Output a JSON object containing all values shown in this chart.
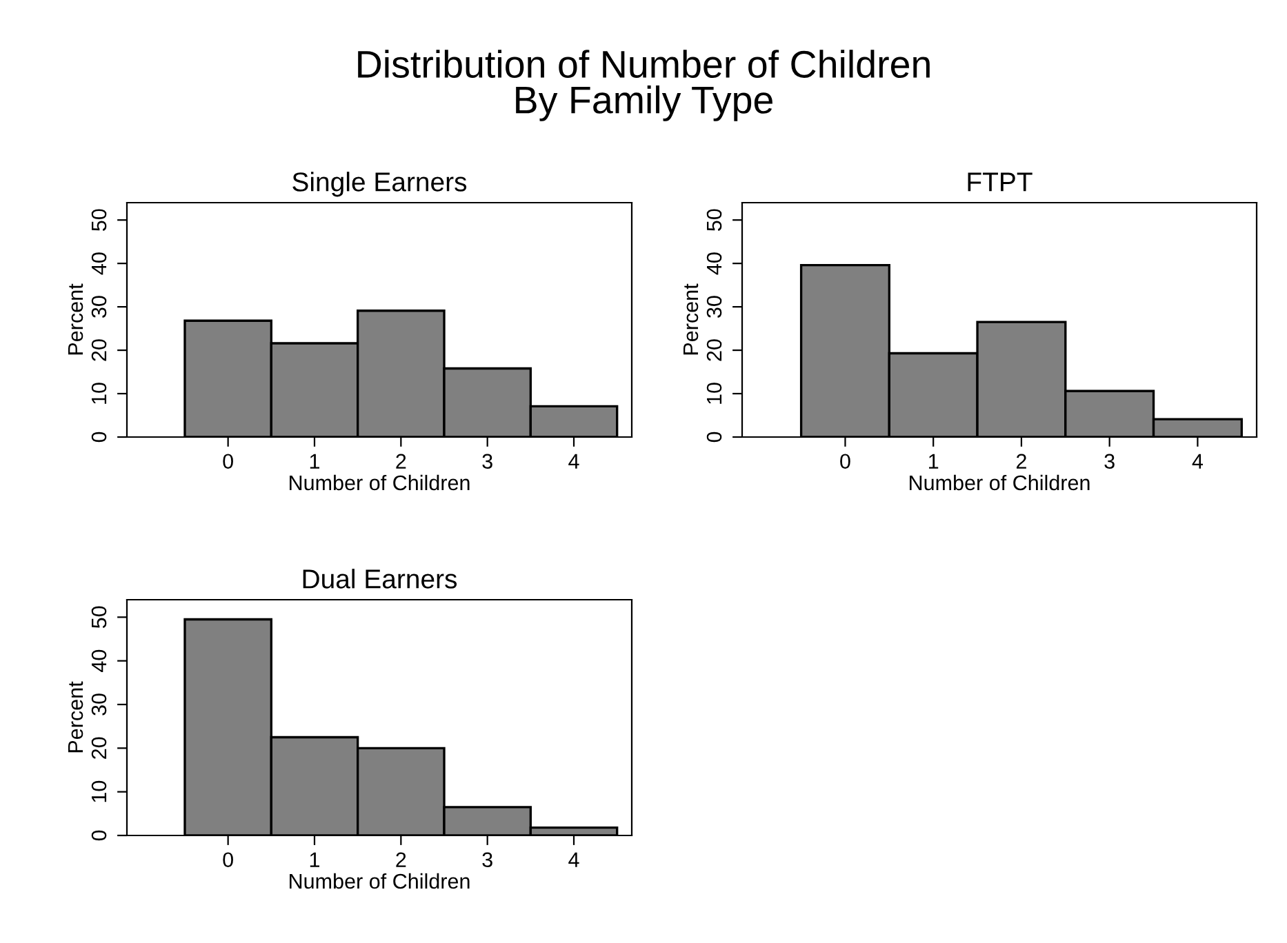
{
  "chart_data": [
    {
      "type": "histogram",
      "title": "Single Earners",
      "xlabel": "Number of Children",
      "ylabel": "Percent",
      "annotations": [
        "Distribution of Number of Children\nBy Family Type"
      ],
      "bins": [
        -0.5,
        0.5,
        1.5,
        2.5,
        3.5,
        4.5
      ],
      "values": [
        26.8,
        21.6,
        29.1,
        15.8,
        7.1
      ],
      "color": "#808080",
      "xlim": [
        -1.17,
        4.67
      ],
      "ylim": [
        0,
        54
      ],
      "xticks": [
        0,
        1,
        2,
        3,
        4
      ],
      "yticks": [
        0,
        10,
        20,
        30,
        40,
        50
      ]
    },
    {
      "type": "histogram",
      "title": "FTPT",
      "xlabel": "Number of Children",
      "ylabel": "Percent",
      "bins": [
        -0.5,
        0.5,
        1.5,
        2.5,
        3.5,
        4.5
      ],
      "values": [
        39.6,
        19.3,
        26.5,
        10.6,
        4.1
      ],
      "color": "#808080",
      "xlim": [
        -1.17,
        4.67
      ],
      "ylim": [
        0,
        54
      ],
      "xticks": [
        0,
        1,
        2,
        3,
        4
      ],
      "yticks": [
        0,
        10,
        20,
        30,
        40,
        50
      ]
    },
    {
      "type": "histogram",
      "title": "Dual Earners",
      "xlabel": "Number of Children",
      "ylabel": "Percent",
      "bins": [
        -0.5,
        0.5,
        1.5,
        2.5,
        3.5,
        4.5
      ],
      "values": [
        49.5,
        22.5,
        20.0,
        6.5,
        1.8
      ],
      "color": "#808080",
      "xlim": [
        -1.17,
        4.67
      ],
      "ylim": [
        0,
        54
      ],
      "xticks": [
        0,
        1,
        2,
        3,
        4
      ],
      "yticks": [
        0,
        10,
        20,
        30,
        40,
        50
      ]
    }
  ]
}
